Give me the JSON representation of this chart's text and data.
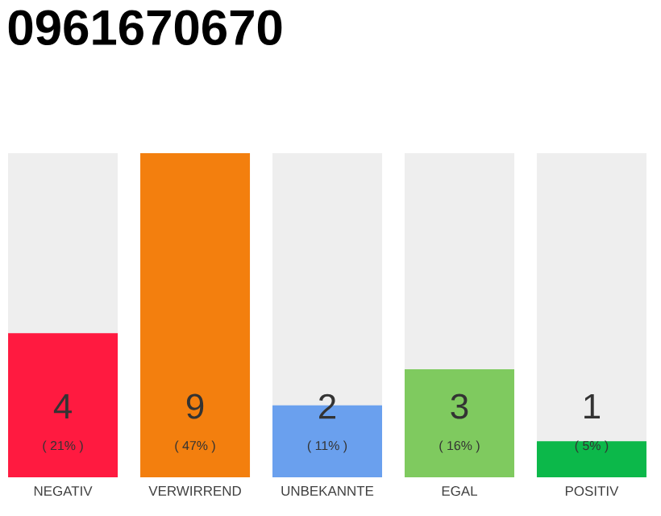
{
  "chart_data": {
    "type": "bar",
    "title": "0961670670",
    "categories": [
      "NEGATIV",
      "VERWIRREND",
      "UNBEKANNTE",
      "EGAL",
      "POSITIV"
    ],
    "values": [
      4,
      9,
      2,
      3,
      1
    ],
    "colors": [
      "#ff1a40",
      "#f37f0e",
      "#6aa0ee",
      "#7fca5f",
      "#0cb84a"
    ],
    "data_labels": true,
    "annotations": [
      "( 21% )",
      "( 47% )",
      "( 11% )",
      "( 16% )",
      "( 5% )"
    ]
  }
}
